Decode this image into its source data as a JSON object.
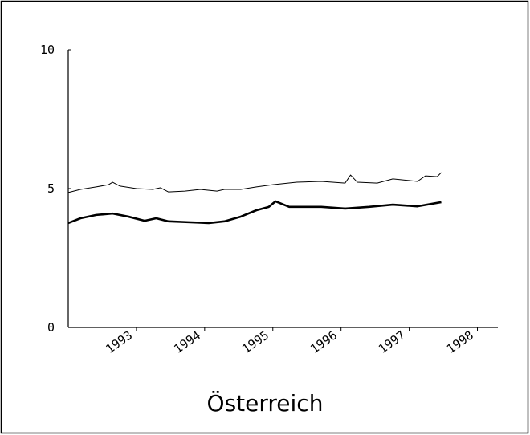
{
  "chart_data": {
    "type": "line",
    "title": "Österreich",
    "xlim": [
      1992,
      1998.3
    ],
    "xticks": [
      1993,
      1994,
      1995,
      1996,
      1997,
      1998
    ],
    "ylim": [
      0,
      10
    ],
    "yticks": [
      0,
      5,
      10
    ],
    "series": [
      {
        "color": "#000000",
        "width": 1,
        "x": [
          1992.0,
          1992.18,
          1992.41,
          1992.59,
          1992.65,
          1992.76,
          1993.0,
          1993.24,
          1993.35,
          1993.47,
          1993.71,
          1993.94,
          1994.18,
          1994.29,
          1994.53,
          1994.76,
          1995.0,
          1995.35,
          1995.71,
          1996.06,
          1996.14,
          1996.24,
          1996.53,
          1996.76,
          1997.12,
          1997.24,
          1997.41,
          1997.47
        ],
        "values": [
          4.86,
          4.97,
          5.06,
          5.14,
          5.23,
          5.09,
          5.0,
          4.97,
          5.03,
          4.88,
          4.91,
          4.97,
          4.91,
          4.97,
          4.97,
          5.06,
          5.14,
          5.23,
          5.26,
          5.2,
          5.49,
          5.23,
          5.2,
          5.35,
          5.26,
          5.46,
          5.43,
          5.58
        ]
      },
      {
        "color": "#000000",
        "width": 2.6,
        "x": [
          1992.0,
          1992.18,
          1992.41,
          1992.65,
          1992.88,
          1993.12,
          1993.29,
          1993.47,
          1993.76,
          1994.06,
          1994.29,
          1994.53,
          1994.76,
          1994.94,
          1995.04,
          1995.24,
          1995.71,
          1996.06,
          1996.41,
          1996.76,
          1997.12,
          1997.47
        ],
        "values": [
          3.76,
          3.93,
          4.05,
          4.1,
          3.99,
          3.84,
          3.93,
          3.82,
          3.79,
          3.76,
          3.82,
          3.99,
          4.22,
          4.34,
          4.54,
          4.34,
          4.34,
          4.28,
          4.34,
          4.42,
          4.36,
          4.51
        ]
      }
    ]
  }
}
